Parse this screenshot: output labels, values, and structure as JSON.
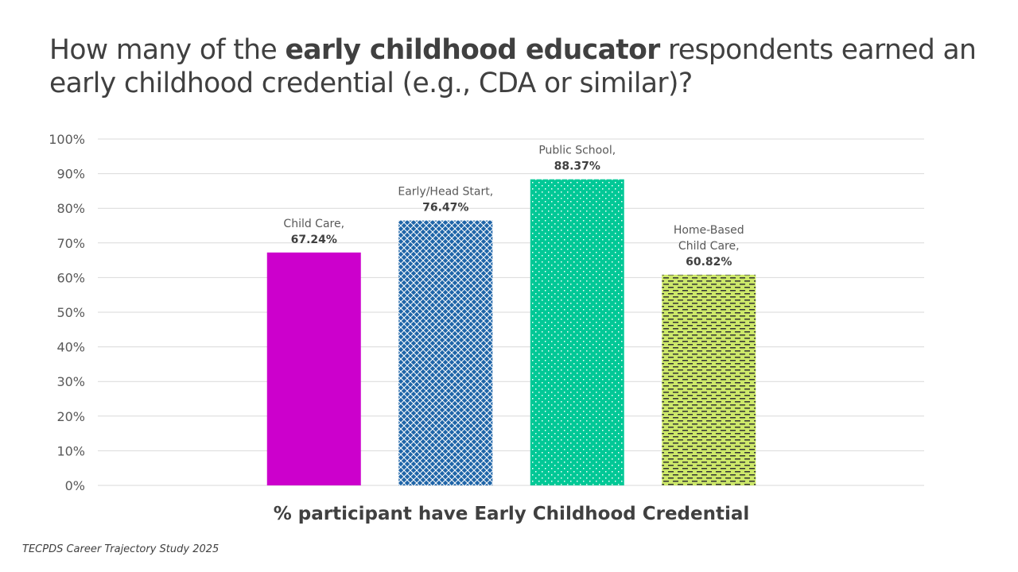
{
  "slide": {
    "title_parts": [
      {
        "text": "How many of the ",
        "bold": false
      },
      {
        "text": "early childhood educator",
        "bold": true
      },
      {
        "text": " respondents earned an early childhood credential (e.g., CDA or similar)?",
        "bold": false
      }
    ],
    "source": "TECPDS Career Trajectory Study 2025"
  },
  "chart_data": {
    "type": "bar",
    "title": "How many of the early childhood educator respondents earned an early childhood credential (e.g., CDA or similar)?",
    "xlabel": "% participant have Early Childhood Credential",
    "ylabel": "",
    "ylim": [
      0,
      100
    ],
    "yticks": [
      0,
      10,
      20,
      30,
      40,
      50,
      60,
      70,
      80,
      90,
      100
    ],
    "ytick_labels": [
      "0%",
      "10%",
      "20%",
      "30%",
      "40%",
      "50%",
      "60%",
      "70%",
      "80%",
      "90%",
      "100%"
    ],
    "grid": true,
    "legend": "none",
    "categories": [
      "Child Care",
      "Early/Head Start",
      "Public School",
      "Home-Based Child Care"
    ],
    "values": [
      67.24,
      76.47,
      88.37,
      60.82
    ],
    "data_labels": [
      {
        "lines": [
          "Child Care,"
        ],
        "value": "67.24%"
      },
      {
        "lines": [
          "Early/Head Start,"
        ],
        "value": "76.47%"
      },
      {
        "lines": [
          "Public School,"
        ],
        "value": "88.37%"
      },
      {
        "lines": [
          "Home-Based",
          "Child Care,"
        ],
        "value": "60.82%"
      }
    ],
    "colors": [
      "#CC00CC",
      "#1F65A8",
      "#00C896",
      "#CDE86A"
    ],
    "patterns": [
      "solid",
      "diamond-grid",
      "dots",
      "dashes"
    ],
    "pattern_colors": [
      "#CC00CC",
      "#ffffff",
      "#ffffff",
      "#333333"
    ]
  }
}
